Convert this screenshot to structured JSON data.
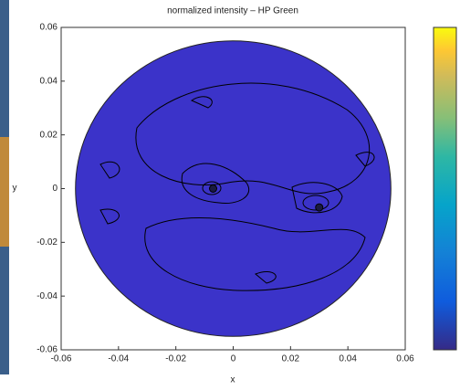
{
  "chart_data": {
    "type": "contour",
    "title": "normalized intensity  – HP Green",
    "x_label": "x",
    "y_label": "y",
    "xlim": [
      -0.06,
      0.06
    ],
    "ylim": [
      -0.06,
      0.06
    ],
    "xticks": [
      -0.06,
      -0.04,
      -0.02,
      0,
      0.02,
      0.04,
      0.06
    ],
    "yticks": [
      -0.06,
      -0.04,
      -0.02,
      0,
      0.02,
      0.04,
      0.06
    ],
    "disk_radius": 0.055,
    "disk_color": "#3b33c9",
    "hotspots": {
      "x": [
        -0.007,
        0.03
      ],
      "y": [
        0,
        -0.007
      ]
    },
    "colorbar": true
  }
}
